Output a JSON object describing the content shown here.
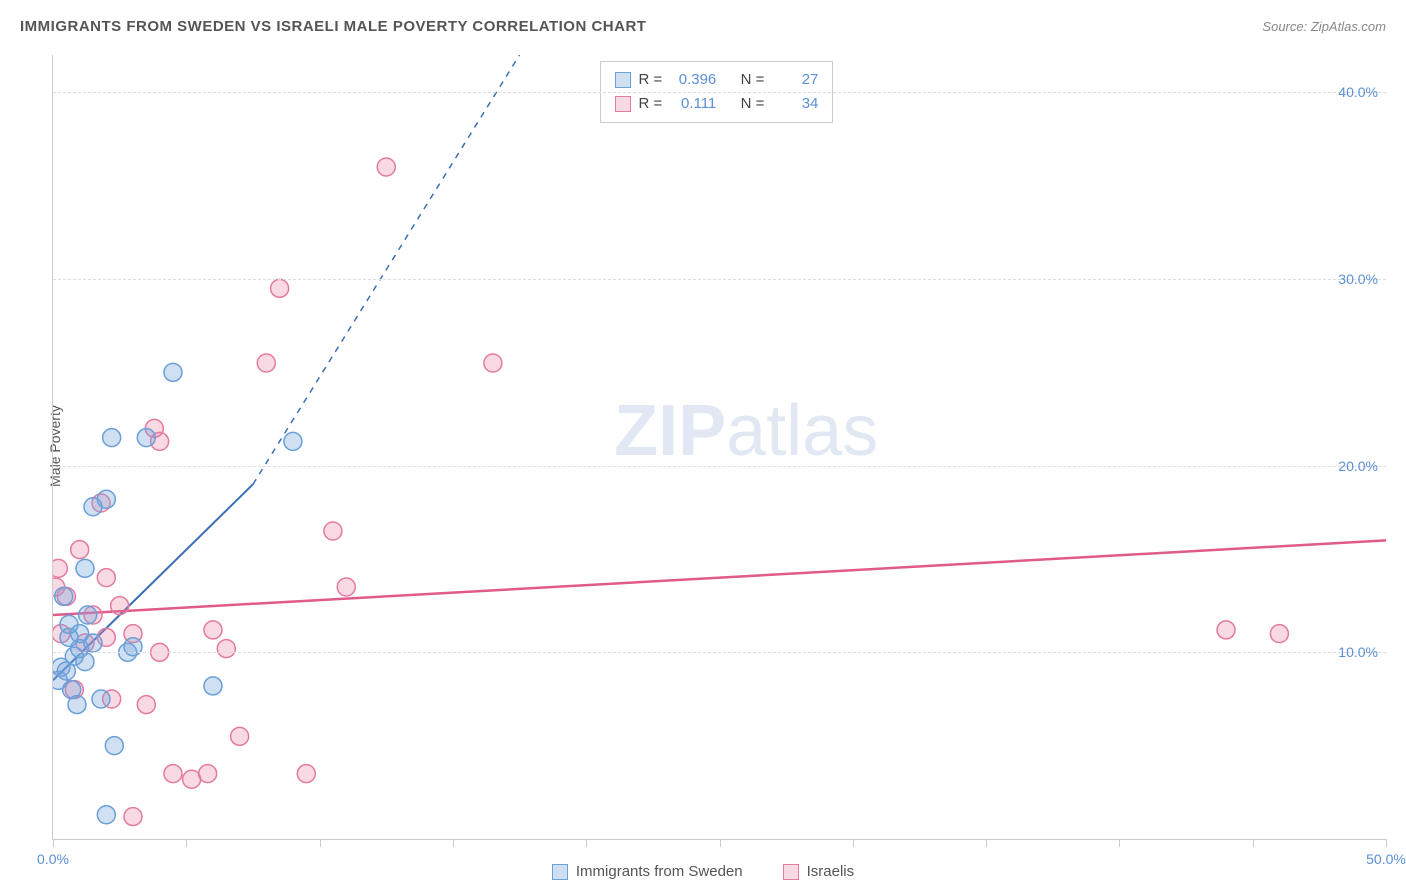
{
  "header": {
    "title": "IMMIGRANTS FROM SWEDEN VS ISRAELI MALE POVERTY CORRELATION CHART",
    "source_label": "Source:",
    "source_name": "ZipAtlas.com"
  },
  "y_axis_label": "Male Poverty",
  "watermark": {
    "bold": "ZIP",
    "rest": "atlas"
  },
  "chart": {
    "type": "scatter",
    "xlim": [
      0,
      50
    ],
    "ylim": [
      0,
      42
    ],
    "x_ticks": [
      0,
      5,
      10,
      15,
      20,
      25,
      30,
      35,
      40,
      45,
      50
    ],
    "x_tick_labels": {
      "0": "0.0%",
      "50": "50.0%"
    },
    "y_ticks": [
      10,
      20,
      30,
      40
    ],
    "y_tick_labels": {
      "10": "10.0%",
      "20": "20.0%",
      "30": "30.0%",
      "40": "40.0%"
    },
    "grid_color": "#dddddd",
    "background_color": "#ffffff",
    "marker_radius": 9,
    "marker_stroke_width": 1.5,
    "series": [
      {
        "key": "sweden",
        "label": "Immigrants from Sweden",
        "fill": "rgba(120,165,220,0.35)",
        "stroke": "#6a9fd8",
        "R_label": "R =",
        "R": "0.396",
        "N_label": "N =",
        "N": "27",
        "trend": {
          "x1": 0,
          "y1": 8.5,
          "x2": 7.5,
          "y2": 19,
          "dash_to_x": 17.5,
          "dash_to_y": 42,
          "color": "#3b6fb5",
          "width": 2
        },
        "points": [
          [
            0.3,
            9.2
          ],
          [
            0.5,
            9.0
          ],
          [
            0.8,
            9.8
          ],
          [
            1.0,
            10.2
          ],
          [
            1.2,
            9.5
          ],
          [
            0.7,
            8.0
          ],
          [
            1.5,
            10.5
          ],
          [
            1.0,
            11.0
          ],
          [
            0.6,
            10.8
          ],
          [
            2.0,
            18.2
          ],
          [
            2.2,
            21.5
          ],
          [
            3.5,
            21.5
          ],
          [
            4.5,
            25.0
          ],
          [
            1.5,
            17.8
          ],
          [
            1.2,
            14.5
          ],
          [
            0.4,
            13.0
          ],
          [
            2.0,
            1.3
          ],
          [
            2.3,
            5.0
          ],
          [
            6.0,
            8.2
          ],
          [
            2.8,
            10.0
          ],
          [
            1.8,
            7.5
          ],
          [
            0.9,
            7.2
          ],
          [
            1.3,
            12.0
          ],
          [
            3.0,
            10.3
          ],
          [
            9.0,
            21.3
          ],
          [
            0.2,
            8.5
          ],
          [
            0.6,
            11.5
          ]
        ]
      },
      {
        "key": "israelis",
        "label": "Israelis",
        "fill": "rgba(235,130,165,0.30)",
        "stroke": "#e47aa0",
        "R_label": "R =",
        "R": "0.111",
        "N_label": "N =",
        "N": "34",
        "trend": {
          "x1": 0,
          "y1": 12.0,
          "x2": 50,
          "y2": 16.0,
          "color": "#e05a8a",
          "width": 2.5
        },
        "points": [
          [
            0.1,
            13.5
          ],
          [
            0.5,
            13.0
          ],
          [
            1.0,
            15.5
          ],
          [
            1.5,
            12.0
          ],
          [
            2.0,
            14.0
          ],
          [
            3.0,
            11.0
          ],
          [
            2.2,
            7.5
          ],
          [
            3.5,
            7.2
          ],
          [
            1.2,
            10.5
          ],
          [
            0.3,
            11.0
          ],
          [
            4.0,
            21.3
          ],
          [
            3.8,
            22.0
          ],
          [
            8.0,
            25.5
          ],
          [
            8.5,
            29.5
          ],
          [
            12.5,
            36.0
          ],
          [
            16.5,
            25.5
          ],
          [
            10.5,
            16.5
          ],
          [
            11.0,
            13.5
          ],
          [
            6.5,
            10.2
          ],
          [
            7.0,
            5.5
          ],
          [
            4.5,
            3.5
          ],
          [
            5.2,
            3.2
          ],
          [
            5.8,
            3.5
          ],
          [
            9.5,
            3.5
          ],
          [
            3.0,
            1.2
          ],
          [
            4.0,
            10.0
          ],
          [
            44.0,
            11.2
          ],
          [
            46.0,
            11.0
          ],
          [
            1.8,
            18.0
          ],
          [
            2.5,
            12.5
          ],
          [
            0.2,
            14.5
          ],
          [
            0.8,
            8.0
          ],
          [
            6.0,
            11.2
          ],
          [
            2.0,
            10.8
          ]
        ]
      }
    ]
  },
  "legend": {
    "sweden": "Immigrants from Sweden",
    "israelis": "Israelis"
  }
}
